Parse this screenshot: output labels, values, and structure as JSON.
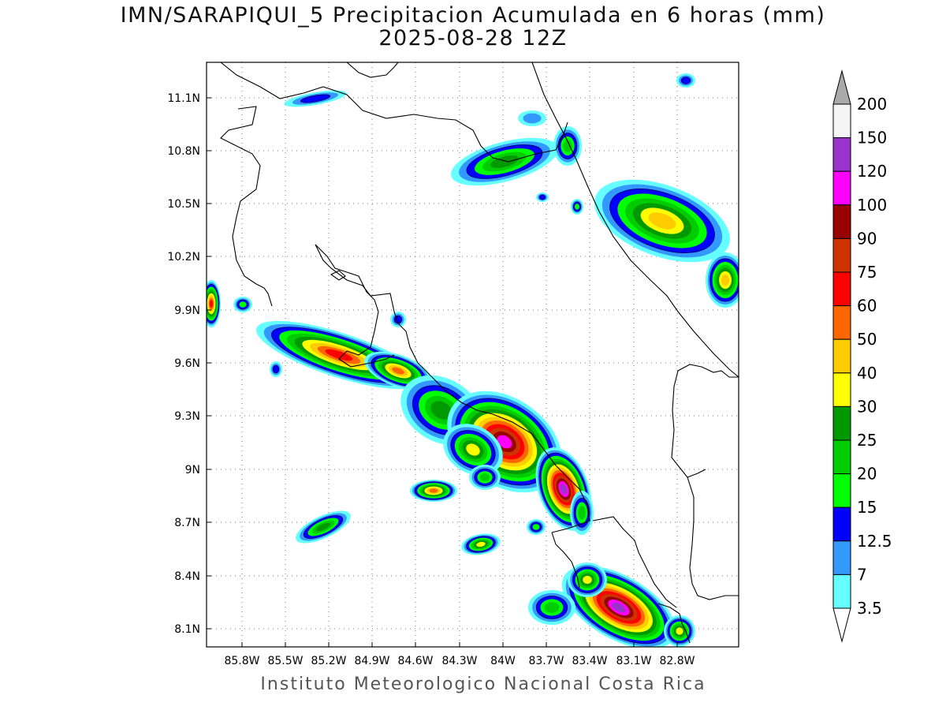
{
  "title": "IMN/SARAPIQUI_5 Precipitacion Acumulada en 6 horas (mm)",
  "subtitle": "2025-08-28 12Z",
  "credit": "Instituto Meteorologico Nacional Costa Rica",
  "map": {
    "x_ticks": [
      "85.8W",
      "85.5W",
      "85.2W",
      "84.9W",
      "84.6W",
      "84.3W",
      "84W",
      "83.7W",
      "83.4W",
      "83.1W",
      "82.8W"
    ],
    "y_ticks": [
      "11.1N",
      "10.8N",
      "10.5N",
      "10.2N",
      "9.9N",
      "9.6N",
      "9.3N",
      "9N",
      "8.7N",
      "8.4N",
      "8.1N"
    ],
    "lon_range": [
      "86.05W",
      "83.03W"
    ],
    "lat_range": [
      "8.01N",
      "11.31N"
    ],
    "grid": "dotted"
  },
  "legend": {
    "labels": [
      "3.5",
      "7",
      "12.5",
      "15",
      "20",
      "25",
      "30",
      "40",
      "50",
      "60",
      "75",
      "90",
      "100",
      "120",
      "150",
      "200"
    ],
    "colors": [
      "#ffffff",
      "#66ffff",
      "#3399ff",
      "#0000ff",
      "#00ff00",
      "#00cc00",
      "#009900",
      "#ffff00",
      "#ffcc00",
      "#ff6600",
      "#ff0000",
      "#cc3300",
      "#990000",
      "#ff00ff",
      "#9933cc",
      "#f5f5f5",
      "#aaaaaa"
    ]
  }
}
